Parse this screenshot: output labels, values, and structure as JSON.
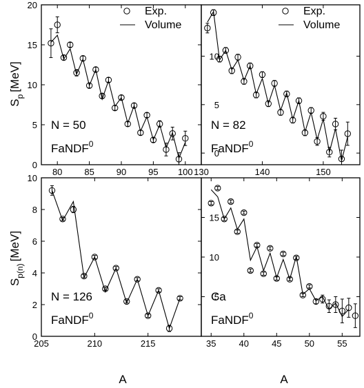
{
  "figure": {
    "ylabel_top": "S",
    "ylabel_top_sub": "p",
    "ylabel_top_unit": "[MeV]",
    "ylabel_bottom": "S",
    "ylabel_bottom_sub": "p(n)",
    "ylabel_bottom_unit": "[MeV]",
    "xlabel": "A",
    "legend": {
      "exp": "Exp.",
      "volume": "Volume"
    }
  },
  "chart_data": [
    {
      "type": "line",
      "panel": "top-left",
      "label_line1": "N = 50",
      "label_line2": "FaNDF",
      "label_sup": "0",
      "xlim": [
        77.5,
        102.5
      ],
      "ylim": [
        0,
        20
      ],
      "xticks": [
        80,
        85,
        90,
        95,
        100
      ],
      "yticks": [
        0,
        5,
        10,
        15,
        20
      ],
      "legend": true,
      "series": [
        {
          "name": "Exp.",
          "kind": "scatter-errorbar",
          "x": [
            79,
            80,
            81,
            82,
            83,
            84,
            85,
            86,
            87,
            88,
            89,
            90,
            91,
            92,
            93,
            94,
            95,
            96,
            97,
            98,
            99,
            100,
            101
          ],
          "y": [
            15.2,
            17.5,
            13.4,
            15.0,
            11.5,
            13.3,
            9.9,
            11.9,
            8.6,
            10.6,
            7.1,
            8.4,
            5.1,
            7.4,
            4.0,
            6.2,
            3.1,
            5.1,
            1.9,
            3.9,
            0.7,
            3.3,
            null
          ],
          "err": [
            1.8,
            1.0,
            0.3,
            0.3,
            0.4,
            0.3,
            0.3,
            0.3,
            0.3,
            0.3,
            0.3,
            0.3,
            0.3,
            0.3,
            0.3,
            0.3,
            0.3,
            0.4,
            0.8,
            0.8,
            0.8,
            0.9,
            null
          ]
        },
        {
          "name": "Volume",
          "kind": "line",
          "x": [
            79,
            80,
            81,
            82,
            83,
            84,
            85,
            86,
            87,
            88,
            89,
            90,
            91,
            92,
            93,
            94,
            95,
            96,
            97,
            98,
            99,
            100
          ],
          "y": [
            15.3,
            16.2,
            13.2,
            14.5,
            11.3,
            13.2,
            9.9,
            11.9,
            8.2,
            10.5,
            7.3,
            8.4,
            5.2,
            7.4,
            4.2,
            6.0,
            3.1,
            5.0,
            2.1,
            4.0,
            0.8,
            2.8
          ]
        }
      ]
    },
    {
      "type": "line",
      "panel": "top-right",
      "label_line1": "N = 82",
      "label_line2": "FaNDF",
      "label_sup": "0",
      "xlim": [
        130,
        156
      ],
      "ylim": [
        -1.2,
        15.3
      ],
      "xticks": [
        130,
        140,
        150
      ],
      "yticks": [
        0,
        5,
        10
      ],
      "ytick_labels": [
        "0",
        "5",
        "10"
      ],
      "legend": true,
      "series": [
        {
          "name": "Exp.",
          "kind": "scatter-errorbar",
          "x": [
            131,
            132,
            133,
            134,
            135,
            136,
            137,
            138,
            139,
            140,
            141,
            142,
            143,
            144,
            145,
            146,
            147,
            148,
            149,
            150,
            151,
            152,
            153,
            154
          ],
          "y": [
            12.9,
            14.5,
            9.7,
            10.6,
            8.5,
            9.9,
            7.4,
            9.0,
            6.0,
            8.1,
            5.1,
            7.2,
            4.2,
            6.1,
            3.4,
            5.4,
            2.1,
            4.4,
            1.2,
            3.8,
            0.1,
            3.0,
            -0.6,
            2.0
          ],
          "err": [
            0.5,
            0.3,
            0.3,
            0.3,
            0.3,
            0.3,
            0.3,
            0.3,
            0.3,
            0.3,
            0.3,
            0.3,
            0.3,
            0.3,
            0.3,
            0.3,
            0.3,
            0.3,
            0.4,
            0.4,
            0.5,
            0.6,
            0.9,
            1.2
          ]
        },
        {
          "name": "Volume",
          "kind": "line",
          "x": [
            131,
            132,
            133,
            134,
            135,
            136,
            137,
            138,
            139,
            140,
            141,
            142,
            143,
            144,
            145,
            146,
            147,
            148,
            149,
            150,
            151,
            152,
            153,
            154
          ],
          "y": [
            13.5,
            14.6,
            9.6,
            10.6,
            8.6,
            9.6,
            7.5,
            9.0,
            6.1,
            7.7,
            5.1,
            7.0,
            4.4,
            6.2,
            3.5,
            5.4,
            2.2,
            4.2,
            1.4,
            3.5,
            0.1,
            2.5,
            -0.8,
            1.7
          ]
        }
      ]
    },
    {
      "type": "line",
      "panel": "bottom-left",
      "label_line1": "N = 126",
      "label_line2": "FaNDF",
      "label_sup": "0",
      "xlim": [
        205,
        220
      ],
      "ylim": [
        0,
        10
      ],
      "xticks": [
        205,
        210,
        215
      ],
      "yticks": [
        0,
        2,
        4,
        6,
        8,
        10
      ],
      "legend": false,
      "series": [
        {
          "name": "Exp.",
          "kind": "scatter-errorbar",
          "x": [
            206,
            207,
            208,
            209,
            210,
            211,
            212,
            213,
            214,
            215,
            216,
            217,
            218
          ],
          "y": [
            9.2,
            7.4,
            8.0,
            3.8,
            5.0,
            3.0,
            4.3,
            2.2,
            3.6,
            1.3,
            2.9,
            0.5,
            2.4
          ],
          "err": [
            0.3,
            0.1,
            0.2,
            0.1,
            0.1,
            0.1,
            0.1,
            0.1,
            0.1,
            0.1,
            0.1,
            0.2,
            0.1
          ]
        },
        {
          "name": "Volume",
          "kind": "line",
          "x": [
            206,
            207,
            208,
            209,
            210,
            211,
            212,
            213,
            214,
            215,
            216,
            217,
            218
          ],
          "y": [
            9.2,
            7.3,
            8.5,
            3.7,
            5.0,
            2.8,
            4.3,
            2.1,
            3.6,
            1.3,
            2.9,
            0.5,
            2.4
          ]
        }
      ]
    },
    {
      "type": "line",
      "panel": "bottom-right",
      "label_line1": "Ca",
      "label_line2": "FaNDF",
      "label_sup": "0",
      "xlim": [
        33.5,
        57.7
      ],
      "ylim": [
        0,
        20
      ],
      "xticks": [
        35,
        40,
        45,
        50,
        55
      ],
      "yticks": [
        5,
        10,
        15
      ],
      "legend": false,
      "series": [
        {
          "name": "Exp.",
          "kind": "scatter-errorbar",
          "x": [
            35,
            36,
            37,
            38,
            39,
            40,
            41,
            42,
            43,
            44,
            45,
            46,
            47,
            48,
            49,
            50,
            51,
            52,
            53,
            54,
            55,
            56,
            57
          ],
          "y": [
            16.8,
            18.7,
            14.8,
            17.0,
            13.2,
            15.6,
            8.3,
            11.5,
            7.9,
            11.1,
            7.3,
            10.4,
            7.2,
            9.9,
            5.2,
            6.3,
            4.4,
            4.7,
            3.8,
            4.0,
            3.2,
            3.6,
            2.6
          ],
          "err": [
            0.2,
            0.2,
            0.2,
            0.2,
            0.2,
            0.2,
            0.2,
            0.2,
            0.2,
            0.2,
            0.2,
            0.2,
            0.2,
            0.2,
            0.2,
            0.2,
            0.3,
            0.5,
            0.8,
            1.0,
            1.5,
            1.2,
            1.5
          ]
        },
        {
          "name": "Volume",
          "kind": "line",
          "x": [
            35,
            36,
            37,
            38,
            39,
            40,
            41,
            42,
            43,
            44,
            45,
            46,
            47,
            48,
            49,
            50,
            51,
            52,
            53,
            54,
            55,
            56
          ],
          "y": [
            18.5,
            17.6,
            14.8,
            16.2,
            13.5,
            14.8,
            9.6,
            11.3,
            8.3,
            10.5,
            7.4,
            9.7,
            7.2,
            10.1,
            5.3,
            6.0,
            4.5,
            5.0,
            3.4,
            4.2,
            2.5,
            3.4
          ]
        }
      ]
    }
  ]
}
